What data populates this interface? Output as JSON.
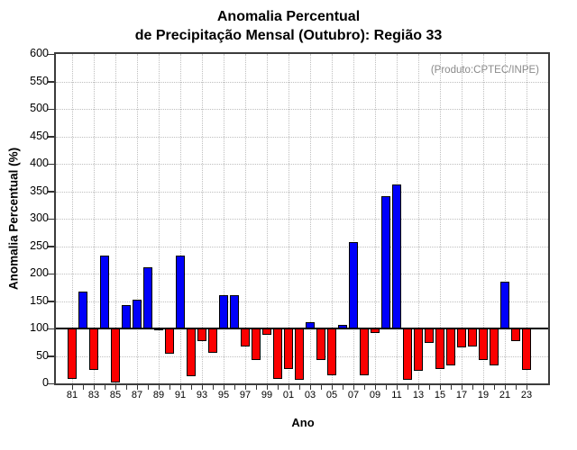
{
  "title": {
    "line1": "Anomalia Percentual",
    "line2": "de Precipitação Mensal (Outubro): Região 33"
  },
  "annotation": "(Produto:CPTEC/INPE)",
  "axes": {
    "ylabel": "Anomalia Percentual (%)",
    "xlabel": "Ano"
  },
  "chart_data": {
    "type": "bar",
    "title": "Anomalia Percentual de Precipitação Mensal (Outubro): Região 33",
    "xlabel": "Ano",
    "ylabel": "Anomalia Percentual (%)",
    "ylim": [
      0,
      600
    ],
    "ytick_step": 50,
    "baseline": 100,
    "grid": "dotted",
    "legend_position": "none",
    "positive_color": "#0000fa",
    "negative_color": "#fb0000",
    "ytick_labels": [
      "0",
      "50",
      "100",
      "150",
      "200",
      "250",
      "300",
      "350",
      "400",
      "450",
      "500",
      "550",
      "600"
    ],
    "xtick_labels": [
      "81",
      "83",
      "85",
      "87",
      "89",
      "91",
      "93",
      "95",
      "97",
      "99",
      "01",
      "03",
      "05",
      "07",
      "09",
      "11",
      "13",
      "15",
      "17",
      "19",
      "21",
      "23"
    ],
    "years": [
      1981,
      1982,
      1983,
      1984,
      1985,
      1986,
      1987,
      1988,
      1989,
      1990,
      1991,
      1992,
      1993,
      1994,
      1995,
      1996,
      1997,
      1998,
      1999,
      2000,
      2001,
      2002,
      2003,
      2004,
      2005,
      2006,
      2007,
      2008,
      2009,
      2010,
      2011,
      2012,
      2013,
      2014,
      2015,
      2016,
      2017,
      2018,
      2019,
      2020,
      2021,
      2022,
      2023
    ],
    "values": [
      8,
      168,
      25,
      232,
      2,
      142,
      153,
      212,
      97,
      54,
      233,
      13,
      77,
      56,
      160,
      160,
      67,
      43,
      88,
      9,
      27,
      7,
      111,
      43,
      15,
      106,
      258,
      15,
      92,
      341,
      362,
      7,
      23,
      73,
      26,
      32,
      66,
      68,
      43,
      33,
      185,
      77,
      25
    ]
  }
}
